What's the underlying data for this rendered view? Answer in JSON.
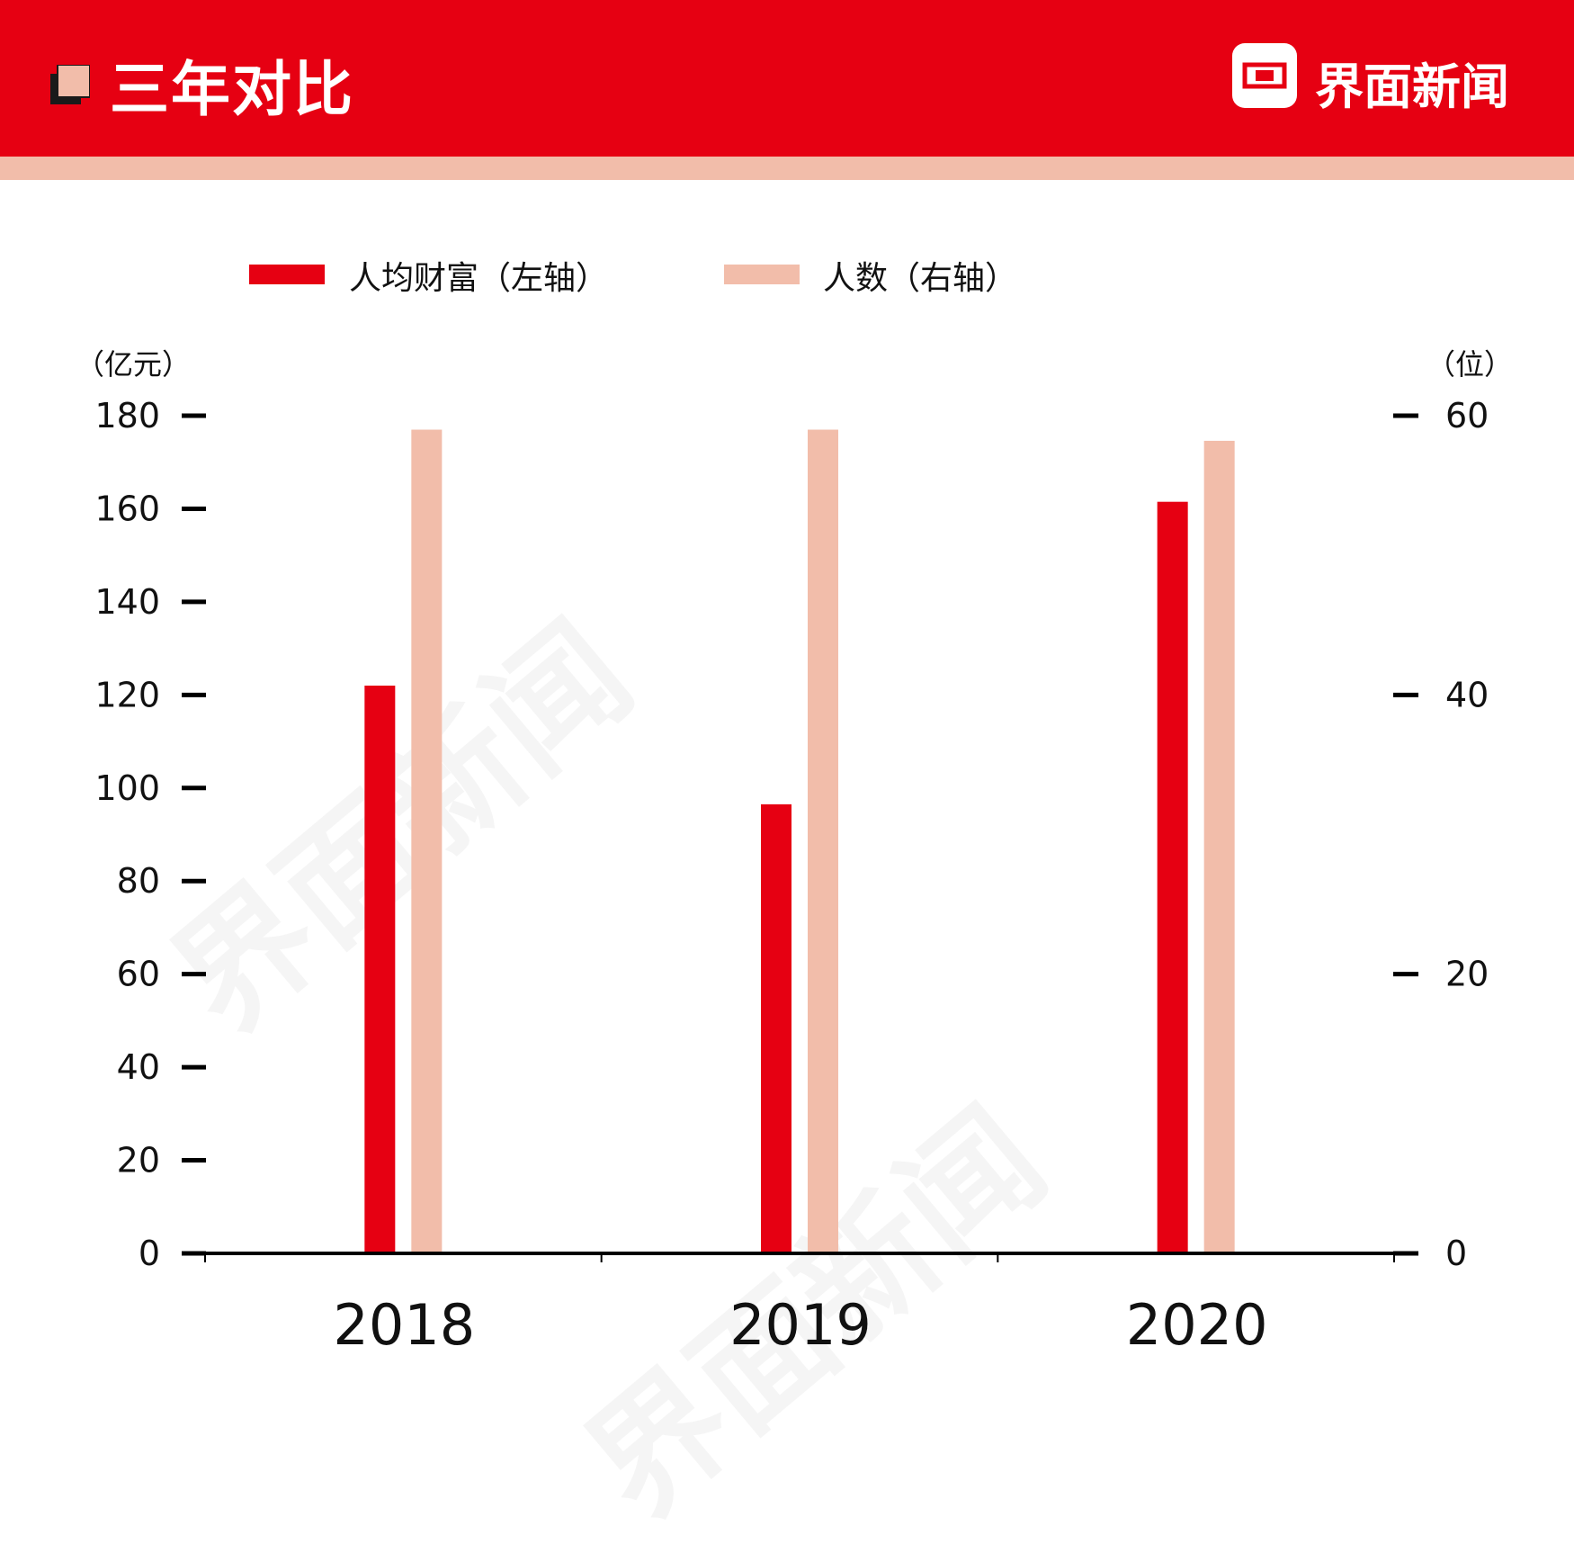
{
  "header": {
    "title": "三年对比",
    "brand": "界面新闻",
    "bar_color": "#E60012",
    "stripe_color": "#F2BDAA"
  },
  "legend": {
    "series1": "人均财富（左轴）",
    "series2": "人数（右轴）"
  },
  "units": {
    "left": "（亿元）",
    "right": "（位）"
  },
  "watermark": "界面新闻",
  "chart_data": {
    "type": "bar",
    "categories": [
      "2018",
      "2019",
      "2020"
    ],
    "series": [
      {
        "name": "人均财富（左轴）",
        "axis": "left",
        "values": [
          122,
          96.5,
          161.5
        ],
        "color": "#E60012"
      },
      {
        "name": "人数（右轴）",
        "axis": "right",
        "values": [
          59,
          59,
          58.2
        ],
        "color": "#F2BDAA"
      }
    ],
    "y_left": {
      "ylim": [
        0,
        180
      ],
      "ticks": [
        0,
        20,
        40,
        60,
        80,
        100,
        120,
        140,
        160,
        180
      ]
    },
    "y_right": {
      "ylim": [
        0,
        60
      ],
      "ticks": [
        0,
        20,
        40,
        60
      ]
    },
    "legend_position": "top-left"
  }
}
